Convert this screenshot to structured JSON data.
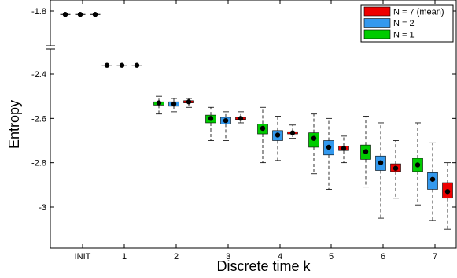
{
  "chart_data": {
    "type": "box",
    "xlabel": "Discrete time k",
    "ylabel": "Entropy",
    "categories": [
      "INIT",
      "1",
      "2",
      "3",
      "4",
      "5",
      "6",
      "7"
    ],
    "y_ticks": [
      "-1.8",
      "-2.4",
      "-2.6",
      "-2.8",
      "-3"
    ],
    "y_axis_break": {
      "between": [
        -1.8,
        -2.4
      ]
    },
    "grid": false,
    "legend": {
      "placement": "top-right",
      "order": [
        "N = 7 (mean)",
        "N = 2",
        "N = 1"
      ]
    },
    "series": [
      {
        "name": "N = 1",
        "color": "#00cc00",
        "boxes": [
          {
            "cat": "INIT",
            "mean": -1.83,
            "q1": -1.83,
            "q3": -1.83,
            "min": -1.83,
            "max": -1.83
          },
          {
            "cat": "1",
            "mean": -2.36,
            "q1": -2.36,
            "q3": -2.36,
            "min": -2.36,
            "max": -2.36
          },
          {
            "cat": "2",
            "mean": -2.53,
            "q1": -2.54,
            "q3": -2.525,
            "min": -2.58,
            "max": -2.5
          },
          {
            "cat": "3",
            "mean": -2.6,
            "q1": -2.62,
            "q3": -2.585,
            "min": -2.7,
            "max": -2.55
          },
          {
            "cat": "4",
            "mean": -2.645,
            "q1": -2.67,
            "q3": -2.625,
            "min": -2.8,
            "max": -2.55
          },
          {
            "cat": "5",
            "mean": -2.69,
            "q1": -2.73,
            "q3": -2.665,
            "min": -2.85,
            "max": -2.58
          },
          {
            "cat": "6",
            "mean": -2.75,
            "q1": -2.785,
            "q3": -2.72,
            "min": -2.91,
            "max": -2.59
          },
          {
            "cat": "7",
            "mean": -2.81,
            "q1": -2.84,
            "q3": -2.78,
            "min": -2.99,
            "max": -2.62
          }
        ]
      },
      {
        "name": "N = 2",
        "color": "#3399ee",
        "boxes": [
          {
            "cat": "INIT",
            "mean": -1.83,
            "q1": -1.83,
            "q3": -1.83,
            "min": -1.83,
            "max": -1.83
          },
          {
            "cat": "1",
            "mean": -2.36,
            "q1": -2.36,
            "q3": -2.36,
            "min": -2.36,
            "max": -2.36
          },
          {
            "cat": "2",
            "mean": -2.535,
            "q1": -2.545,
            "q3": -2.525,
            "min": -2.57,
            "max": -2.51
          },
          {
            "cat": "3",
            "mean": -2.61,
            "q1": -2.625,
            "q3": -2.595,
            "min": -2.7,
            "max": -2.57
          },
          {
            "cat": "4",
            "mean": -2.675,
            "q1": -2.7,
            "q3": -2.655,
            "min": -2.79,
            "max": -2.59
          },
          {
            "cat": "5",
            "mean": -2.73,
            "q1": -2.765,
            "q3": -2.7,
            "min": -2.92,
            "max": -2.6
          },
          {
            "cat": "6",
            "mean": -2.8,
            "q1": -2.835,
            "q3": -2.77,
            "min": -3.05,
            "max": -2.62
          },
          {
            "cat": "7",
            "mean": -2.875,
            "q1": -2.92,
            "q3": -2.845,
            "min": -3.06,
            "max": -2.71
          }
        ]
      },
      {
        "name": "N = 7 (mean)",
        "color": "#ee0000",
        "boxes": [
          {
            "cat": "INIT",
            "mean": -1.83,
            "q1": -1.83,
            "q3": -1.83,
            "min": -1.83,
            "max": -1.83
          },
          {
            "cat": "1",
            "mean": -2.36,
            "q1": -2.36,
            "q3": -2.36,
            "min": -2.36,
            "max": -2.36
          },
          {
            "cat": "2",
            "mean": -2.525,
            "q1": -2.53,
            "q3": -2.52,
            "min": -2.55,
            "max": -2.51
          },
          {
            "cat": "3",
            "mean": -2.6,
            "q1": -2.605,
            "q3": -2.595,
            "min": -2.62,
            "max": -2.57
          },
          {
            "cat": "4",
            "mean": -2.665,
            "q1": -2.67,
            "q3": -2.66,
            "min": -2.69,
            "max": -2.63
          },
          {
            "cat": "5",
            "mean": -2.735,
            "q1": -2.745,
            "q3": -2.725,
            "min": -2.8,
            "max": -2.68
          },
          {
            "cat": "6",
            "mean": -2.825,
            "q1": -2.84,
            "q3": -2.805,
            "min": -2.96,
            "max": -2.7
          },
          {
            "cat": "7",
            "mean": -2.93,
            "q1": -2.96,
            "q3": -2.89,
            "min": -3.1,
            "max": -2.8
          }
        ]
      }
    ]
  }
}
